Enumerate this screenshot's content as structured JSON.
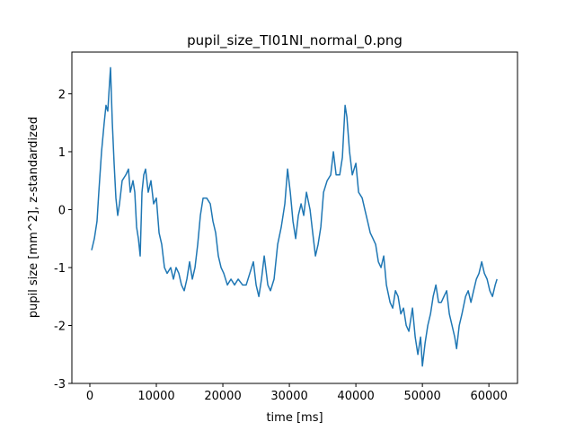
{
  "chart_data": {
    "type": "line",
    "title": "pupil_size_TI01NI_normal_0.png",
    "x_label": "time [ms]",
    "y_label": "pupil size [mm^2], z-standardized",
    "x": [
      270,
      680,
      1080,
      1350,
      1760,
      2160,
      2430,
      2700,
      2970,
      3110,
      3380,
      3650,
      3920,
      4190,
      4460,
      4860,
      5410,
      5810,
      6080,
      6490,
      6760,
      7030,
      7300,
      7570,
      7840,
      8110,
      8380,
      8780,
      9190,
      9590,
      10000,
      10410,
      10810,
      11220,
      11620,
      12160,
      12570,
      12970,
      13380,
      13780,
      14190,
      14590,
      15000,
      15410,
      15810,
      16220,
      16620,
      17030,
      17570,
      18110,
      18510,
      18920,
      19320,
      19730,
      20140,
      20680,
      21220,
      21760,
      22300,
      22970,
      23510,
      24050,
      24590,
      25000,
      25410,
      25810,
      26220,
      26760,
      27160,
      27700,
      28240,
      28780,
      29320,
      29730,
      30140,
      30540,
      30950,
      31350,
      31760,
      32160,
      32570,
      33110,
      33510,
      33920,
      34320,
      34730,
      35140,
      35680,
      36220,
      36620,
      37030,
      37570,
      37970,
      38380,
      38650,
      39050,
      39460,
      40000,
      40410,
      40950,
      41350,
      41760,
      42160,
      42570,
      42970,
      43380,
      43780,
      44190,
      44590,
      45140,
      45540,
      45950,
      46350,
      46760,
      47160,
      47570,
      47970,
      48510,
      48920,
      49320,
      49730,
      50000,
      50410,
      50810,
      51220,
      51620,
      52030,
      52430,
      52840,
      53240,
      53650,
      54050,
      54460,
      54860,
      55140,
      55540,
      55950,
      56490,
      56890,
      57300,
      57700,
      58110,
      58510,
      58920,
      59320,
      59730,
      60140,
      60540,
      60950,
      61220
    ],
    "series": [
      {
        "color": "#1f77b4",
        "values": [
          -0.7,
          -0.5,
          -0.2,
          0.3,
          1.0,
          1.5,
          1.8,
          1.7,
          2.2,
          2.45,
          1.5,
          0.8,
          0.2,
          -0.1,
          0.1,
          0.5,
          0.6,
          0.7,
          0.3,
          0.5,
          0.3,
          -0.3,
          -0.5,
          -0.8,
          0.3,
          0.6,
          0.7,
          0.3,
          0.5,
          0.1,
          0.2,
          -0.4,
          -0.6,
          -1.0,
          -1.1,
          -1.0,
          -1.2,
          -1.0,
          -1.1,
          -1.3,
          -1.4,
          -1.2,
          -0.9,
          -1.2,
          -1.0,
          -0.6,
          -0.1,
          0.2,
          0.2,
          0.1,
          -0.2,
          -0.4,
          -0.8,
          -1.0,
          -1.1,
          -1.3,
          -1.2,
          -1.3,
          -1.2,
          -1.3,
          -1.3,
          -1.1,
          -0.9,
          -1.3,
          -1.5,
          -1.2,
          -0.8,
          -1.3,
          -1.4,
          -1.2,
          -0.6,
          -0.3,
          0.1,
          0.7,
          0.3,
          -0.2,
          -0.5,
          -0.1,
          0.1,
          -0.1,
          0.3,
          0.0,
          -0.4,
          -0.8,
          -0.6,
          -0.3,
          0.3,
          0.5,
          0.6,
          1.0,
          0.6,
          0.6,
          0.9,
          1.8,
          1.6,
          1.0,
          0.6,
          0.8,
          0.3,
          0.2,
          0.0,
          -0.2,
          -0.4,
          -0.5,
          -0.6,
          -0.9,
          -1.0,
          -0.8,
          -1.3,
          -1.6,
          -1.7,
          -1.4,
          -1.5,
          -1.8,
          -1.7,
          -2.0,
          -2.1,
          -1.7,
          -2.2,
          -2.5,
          -2.2,
          -2.7,
          -2.3,
          -2.0,
          -1.8,
          -1.5,
          -1.3,
          -1.6,
          -1.6,
          -1.5,
          -1.4,
          -1.8,
          -2.0,
          -2.2,
          -2.4,
          -2.0,
          -1.8,
          -1.5,
          -1.4,
          -1.6,
          -1.4,
          -1.2,
          -1.1,
          -0.9,
          -1.1,
          -1.2,
          -1.4,
          -1.5,
          -1.3,
          -1.2
        ]
      }
    ],
    "xlim": [
      -2700,
      64300
    ],
    "ylim": [
      -3.0,
      2.72
    ],
    "xticks": [
      0,
      10000,
      20000,
      30000,
      40000,
      50000,
      60000
    ],
    "yticks": [
      -3,
      -2,
      -1,
      0,
      1,
      2
    ]
  }
}
